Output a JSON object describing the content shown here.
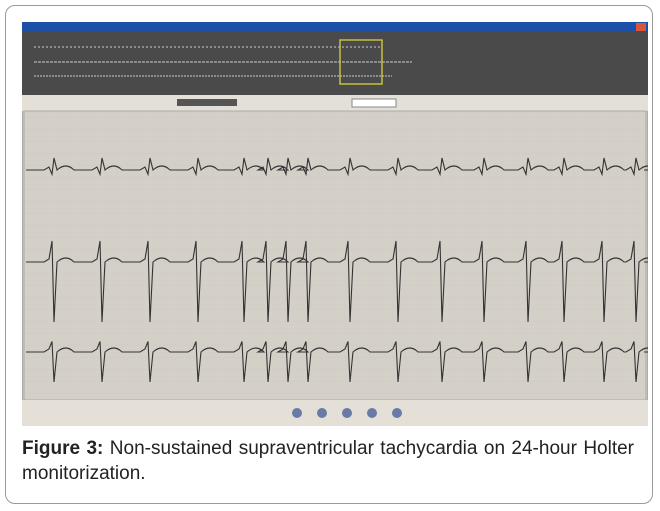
{
  "figure": {
    "label": "Figure 3:",
    "caption": "Non-sustained supraventricular tachycardia on 24-hour Holter monitorization."
  }
}
